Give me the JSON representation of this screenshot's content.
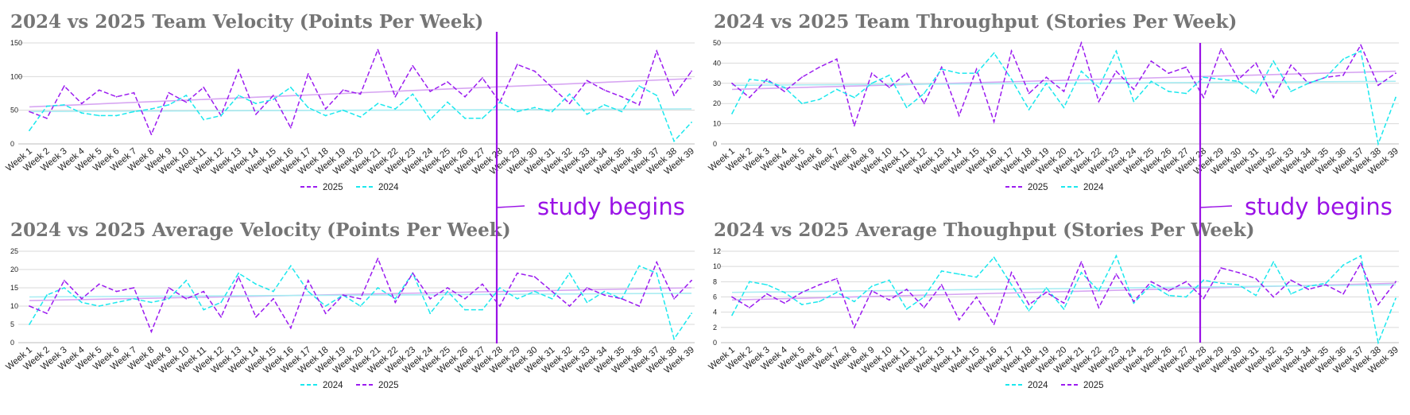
{
  "colors": {
    "series_2025": "#9b1cf0",
    "series_2024": "#1ce8ee",
    "trend_2025": "#d7a6f2",
    "trend_2024": "#a8ecf2",
    "annotation": "#9a12e6",
    "grid": "#d9d9d9",
    "title": "#757575"
  },
  "annotation": {
    "label": "study begins",
    "at_category": "Week 28"
  },
  "chart_data": [
    {
      "type": "line",
      "title": "2024 vs 2025 Team Velocity (Points Per Week)",
      "categories": [
        "Week 1",
        "Week 2",
        "Week 3",
        "Week 4",
        "Week 5",
        "Week 6",
        "Week 7",
        "Week 8",
        "Week 9",
        "Week 10",
        "Week 11",
        "Week 12",
        "Week 13",
        "Week 14",
        "Week 15",
        "Week 16",
        "Week 17",
        "Week 18",
        "Week 19",
        "Week 20",
        "Week 21",
        "Week 22",
        "Week 23",
        "Week 24",
        "Week 25",
        "Week 26",
        "Week 27",
        "Week 28",
        "Week 29",
        "Week 30",
        "Week 31",
        "Week 32",
        "Week 33",
        "Week 34",
        "Week 35",
        "Week 36",
        "Week 37",
        "Week 38",
        "Week 39"
      ],
      "yticks": [
        0,
        50,
        100,
        150
      ],
      "ylim": [
        0,
        150
      ],
      "legend": [
        {
          "name": "2025",
          "color": "#9b1cf0"
        },
        {
          "name": "2024",
          "color": "#1ce8ee"
        }
      ],
      "series": [
        {
          "name": "2025",
          "color": "#9b1cf0",
          "values": [
            48,
            38,
            86,
            60,
            80,
            70,
            76,
            14,
            76,
            62,
            84,
            42,
            110,
            44,
            72,
            24,
            104,
            52,
            80,
            74,
            140,
            70,
            116,
            78,
            92,
            70,
            98,
            62,
            118,
            108,
            84,
            60,
            94,
            80,
            70,
            58,
            138,
            72,
            108
          ]
        },
        {
          "name": "2024",
          "color": "#1ce8ee",
          "values": [
            20,
            56,
            58,
            46,
            42,
            42,
            48,
            52,
            58,
            72,
            36,
            42,
            72,
            60,
            66,
            84,
            54,
            42,
            50,
            40,
            60,
            52,
            74,
            36,
            62,
            38,
            38,
            62,
            48,
            54,
            48,
            74,
            44,
            58,
            48,
            86,
            72,
            4,
            32
          ]
        }
      ],
      "trendlines": [
        {
          "name": "2025",
          "color": "#d7a6f2",
          "start": 55,
          "end": 97
        },
        {
          "name": "2024",
          "color": "#a8ecf2",
          "start": 48,
          "end": 52
        }
      ]
    },
    {
      "type": "line",
      "title": "2024 vs 2025 Team Throughput (Stories Per Week)",
      "categories": [
        "Week 1",
        "Week 2",
        "Week 3",
        "Week 4",
        "Week 5",
        "Week 6",
        "Week 7",
        "Week 8",
        "Week 9",
        "Week 10",
        "Week 11",
        "Week 12",
        "Week 13",
        "Week 14",
        "Week 15",
        "Week 16",
        "Week 17",
        "Week 18",
        "Week 19",
        "Week 20",
        "Week 21",
        "Week 22",
        "Week 23",
        "Week 24",
        "Week 25",
        "Week 26",
        "Week 27",
        "Week 28",
        "Week 29",
        "Week 30",
        "Week 31",
        "Week 32",
        "Week 33",
        "Week 34",
        "Week 35",
        "Week 36",
        "Week 37",
        "Week 38",
        "Week 39"
      ],
      "yticks": [
        0,
        10,
        20,
        30,
        40,
        50
      ],
      "ylim": [
        0,
        50
      ],
      "legend": [
        {
          "name": "2025",
          "color": "#9b1cf0"
        },
        {
          "name": "2024",
          "color": "#1ce8ee"
        }
      ],
      "series": [
        {
          "name": "2025",
          "color": "#9b1cf0",
          "values": [
            30,
            23,
            32,
            26,
            33,
            38,
            42,
            9,
            35,
            28,
            35,
            20,
            38,
            14,
            37,
            11,
            46,
            25,
            33,
            26,
            50,
            21,
            36,
            27,
            41,
            35,
            38,
            23,
            47,
            32,
            40,
            23,
            39,
            30,
            33,
            34,
            49,
            29,
            35
          ]
        },
        {
          "name": "2024",
          "color": "#1ce8ee",
          "values": [
            15,
            32,
            31,
            28,
            20,
            22,
            27,
            23,
            30,
            34,
            18,
            25,
            37,
            35,
            35,
            45,
            32,
            17,
            30,
            18,
            36,
            28,
            46,
            21,
            31,
            26,
            25,
            33,
            32,
            31,
            25,
            41,
            26,
            30,
            33,
            42,
            46,
            0,
            23
          ]
        }
      ],
      "trendlines": [
        {
          "name": "2025",
          "color": "#d7a6f2",
          "start": 27,
          "end": 36
        },
        {
          "name": "2024",
          "color": "#a8ecf2",
          "start": 29,
          "end": 31
        }
      ]
    },
    {
      "type": "line",
      "title": "2024 vs 2025 Average Velocity (Points Per Week)",
      "categories": [
        "Week 1",
        "Week 2",
        "Week 3",
        "Week 4",
        "Week 5",
        "Week 6",
        "Week 7",
        "Week 8",
        "Week 9",
        "Week 10",
        "Week 11",
        "Week 12",
        "Week 13",
        "Week 14",
        "Week 15",
        "Week 16",
        "Week 17",
        "Week 18",
        "Week 19",
        "Week 20",
        "Week 21",
        "Week 22",
        "Week 23",
        "Week 24",
        "Week 25",
        "Week 26",
        "Week 27",
        "Week 28",
        "Week 29",
        "Week 30",
        "Week 31",
        "Week 32",
        "Week 33",
        "Week 34",
        "Week 35",
        "Week 36",
        "Week 37",
        "Week 38",
        "Week 39"
      ],
      "yticks": [
        0,
        5,
        10,
        15,
        20,
        25
      ],
      "ylim": [
        0,
        25
      ],
      "legend": [
        {
          "name": "2024",
          "color": "#1ce8ee"
        },
        {
          "name": "2025",
          "color": "#9b1cf0"
        }
      ],
      "series": [
        {
          "name": "2024",
          "color": "#1ce8ee",
          "values": [
            5,
            13,
            15,
            11,
            10,
            11,
            12,
            11,
            12,
            17,
            9,
            11,
            19,
            16,
            14,
            21,
            14,
            10,
            13,
            10,
            15,
            12,
            19,
            8,
            14,
            9,
            9,
            15,
            12,
            14,
            12,
            19,
            11,
            14,
            12,
            21,
            19,
            1,
            8
          ]
        },
        {
          "name": "2025",
          "color": "#9b1cf0",
          "values": [
            10,
            8,
            17,
            12,
            16,
            14,
            15,
            3,
            15,
            12,
            14,
            7,
            18,
            7,
            12,
            4,
            17,
            8,
            13,
            12,
            23,
            11,
            19,
            12,
            15,
            12,
            16,
            10,
            19,
            18,
            14,
            10,
            15,
            13,
            12,
            10,
            22,
            12,
            17
          ]
        }
      ],
      "trendlines": [
        {
          "name": "2025",
          "color": "#d7a6f2",
          "start": 11.5,
          "end": 15
        },
        {
          "name": "2024",
          "color": "#a8ecf2",
          "start": 12.5,
          "end": 13.5
        }
      ]
    },
    {
      "type": "line",
      "title": "2024 vs 2025 Average Thoughput (Stories Per Week)",
      "categories": [
        "Week 1",
        "Week 2",
        "Week 3",
        "Week 4",
        "Week 5",
        "Week 6",
        "Week 7",
        "Week 8",
        "Week 9",
        "Week 10",
        "Week 11",
        "Week 12",
        "Week 13",
        "Week 14",
        "Week 15",
        "Week 16",
        "Week 17",
        "Week 18",
        "Week 19",
        "Week 20",
        "Week 21",
        "Week 22",
        "Week 23",
        "Week 24",
        "Week 25",
        "Week 26",
        "Week 27",
        "Week 28",
        "Week 29",
        "Week 30",
        "Week 31",
        "Week 32",
        "Week 33",
        "Week 34",
        "Week 35",
        "Week 36",
        "Week 37",
        "Week 38",
        "Week 39"
      ],
      "yticks": [
        0,
        2,
        4,
        6,
        8,
        10,
        12
      ],
      "ylim": [
        0,
        12
      ],
      "legend": [
        {
          "name": "2024",
          "color": "#1ce8ee"
        },
        {
          "name": "2025",
          "color": "#9b1cf0"
        }
      ],
      "series": [
        {
          "name": "2024",
          "color": "#1ce8ee",
          "values": [
            3.6,
            8,
            7.6,
            6.6,
            5,
            5.4,
            6.6,
            5.4,
            7.4,
            8.2,
            4.4,
            6,
            9.4,
            9,
            8.6,
            11.2,
            7.6,
            4.2,
            7.2,
            4.4,
            9.2,
            6.8,
            11.4,
            5.2,
            7.6,
            6.2,
            6,
            8.2,
            7.8,
            7.6,
            6.2,
            10.6,
            6.4,
            7.4,
            7.8,
            10.2,
            11.4,
            0,
            5.8
          ]
        },
        {
          "name": "2025",
          "color": "#9b1cf0",
          "values": [
            6,
            4.6,
            6.4,
            5.2,
            6.6,
            7.6,
            8.4,
            2,
            6.8,
            5.6,
            7,
            4.6,
            7.6,
            3,
            6,
            2.4,
            9.2,
            5,
            6.6,
            5.2,
            10.6,
            4.6,
            9,
            5.4,
            8,
            6.8,
            8,
            5.8,
            9.8,
            9.2,
            8.4,
            6,
            8.2,
            7,
            7.6,
            6.4,
            10.4,
            5,
            8
          ]
        }
      ],
      "trendlines": [
        {
          "name": "2025",
          "color": "#d7a6f2",
          "start": 5.6,
          "end": 7.8
        },
        {
          "name": "2024",
          "color": "#a8ecf2",
          "start": 6.6,
          "end": 7.6
        }
      ]
    }
  ]
}
